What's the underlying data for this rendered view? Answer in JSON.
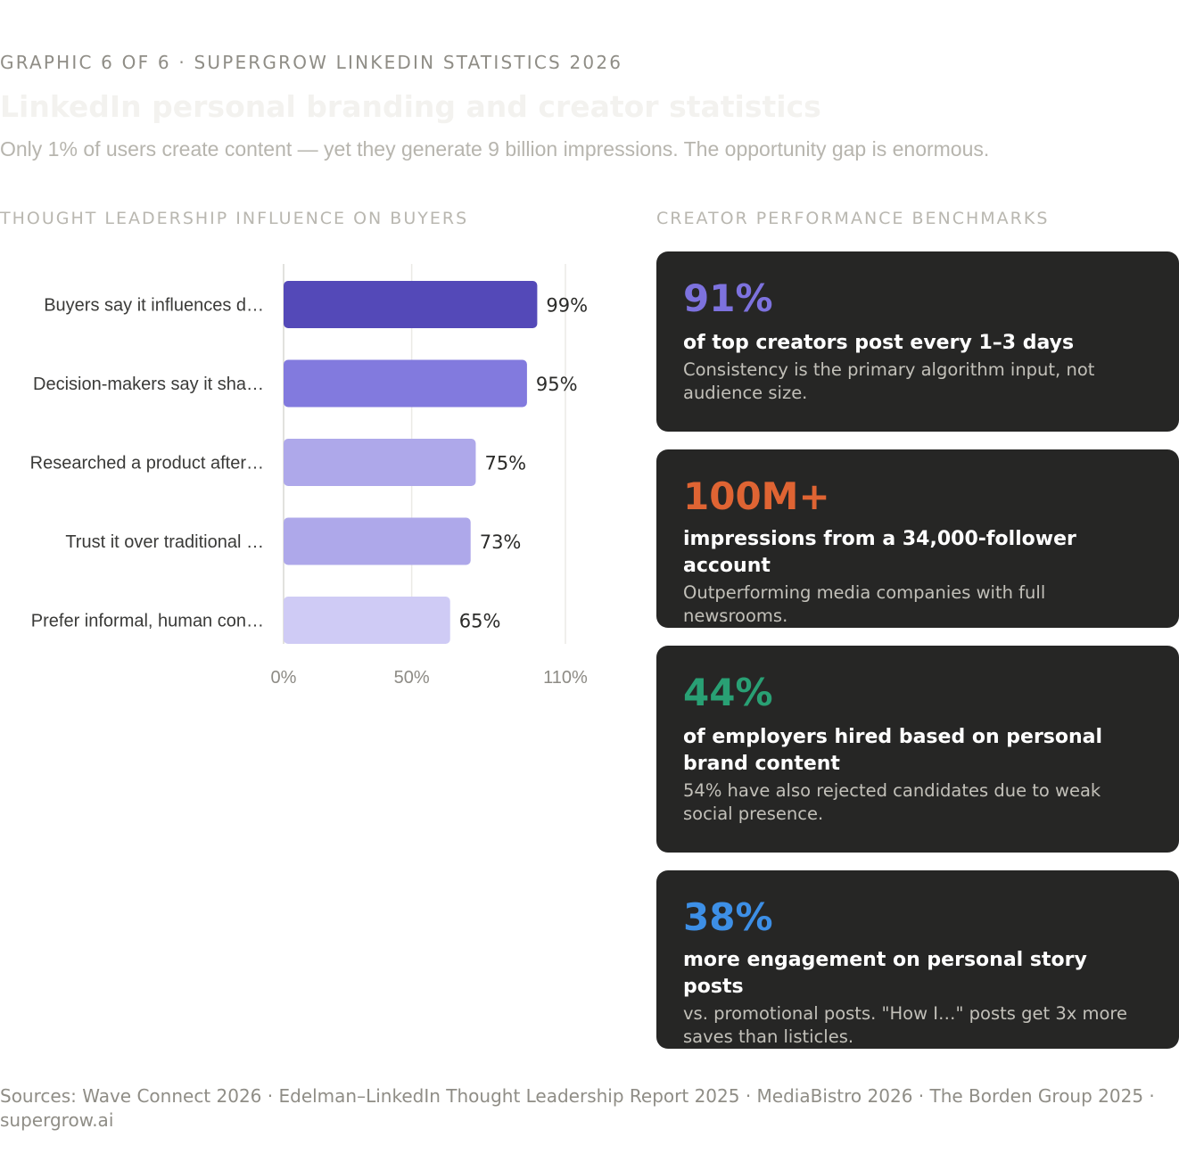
{
  "header": {
    "eyebrow": "GRAPHIC 6 OF 6 · SUPERGROW LINKEDIN STATISTICS 2026",
    "title": "LinkedIn personal branding and creator statistics",
    "subtitle": "Only 1% of users create content — yet they generate 9 billion impressions. The opportunity gap is enormous."
  },
  "left_section_label": "THOUGHT LEADERSHIP INFLUENCE ON BUYERS",
  "right_section_label": "CREATOR PERFORMANCE BENCHMARKS",
  "chart_data": {
    "type": "bar",
    "orientation": "horizontal",
    "title": "THOUGHT LEADERSHIP INFLUENCE ON BUYERS",
    "categories": [
      "Buyers say it influences d…",
      "Decision-makers say it sha…",
      "Researched a product after…",
      "Trust it over traditional …",
      "Prefer informal, human con…"
    ],
    "values": [
      99,
      95,
      75,
      73,
      65
    ],
    "value_labels": [
      "99%",
      "95%",
      "75%",
      "73%",
      "65%"
    ],
    "bar_colors": [
      "#5449b8",
      "#827ade",
      "#aea8ea",
      "#aea8ea",
      "#cfcbf5"
    ],
    "xlim": [
      0,
      110
    ],
    "x_ticks": [
      0,
      50,
      110
    ],
    "x_tick_labels": [
      "0%",
      "50%",
      "110%"
    ],
    "grid": true,
    "xlabel": "",
    "ylabel": ""
  },
  "cards": [
    {
      "stat": "91%",
      "stat_color": "#7d72de",
      "headline": "of top creators post every 1–3 days",
      "description": "Consistency is the primary algorithm input, not audience size."
    },
    {
      "stat": "100M+",
      "stat_color": "#df6433",
      "headline": "impressions from a 34,000-follower account",
      "description": "Outperforming media companies with full newsrooms."
    },
    {
      "stat": "44%",
      "stat_color": "#29a074",
      "headline": "of employers hired based on personal brand content",
      "description": "54% have also rejected candidates due to weak social presence."
    },
    {
      "stat": "38%",
      "stat_color": "#3d8fe6",
      "headline": "more engagement on personal story posts",
      "description": "vs. promotional posts. \"How I…\" posts get 3x more saves than listicles."
    }
  ],
  "sources": "Sources: Wave Connect 2026 · Edelman–LinkedIn Thought Leadership Report 2025 · MediaBistro 2026 · The Borden Group 2025 · supergrow.ai"
}
